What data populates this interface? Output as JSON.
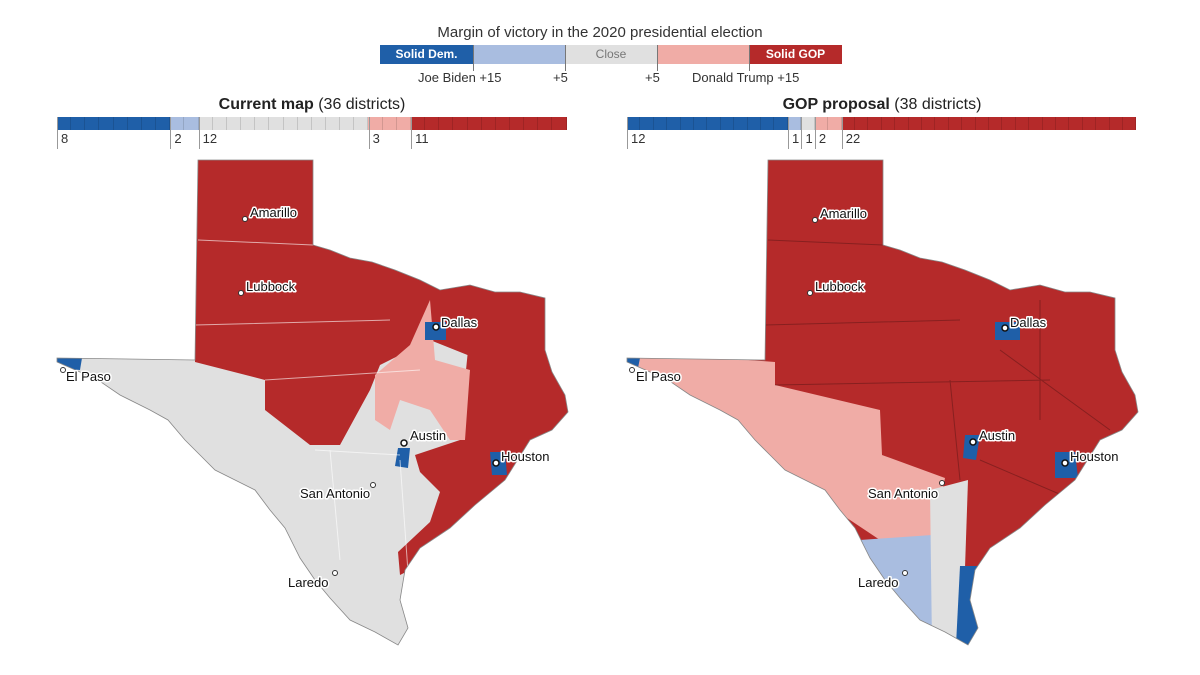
{
  "legend": {
    "title": "Margin of victory in the 2020 presidential election",
    "segments": [
      {
        "label": "Solid Dem.",
        "color": "#1f5fa8"
      },
      {
        "label": "",
        "color": "#a9bde0"
      },
      {
        "label": "Close",
        "color": "#e0e0e0"
      },
      {
        "label": "",
        "color": "#f0aca6"
      },
      {
        "label": "Solid GOP",
        "color": "#b52a2a"
      }
    ],
    "tick_labels": [
      "Joe Biden +15",
      "+5",
      "+5",
      "Donald Trump +15"
    ]
  },
  "maps": [
    {
      "title_bold": "Current map",
      "title_rest": " (36 districts)",
      "counts": [
        8,
        2,
        12,
        3,
        11
      ],
      "count_labels": [
        "8",
        "2",
        "12",
        "3",
        "11"
      ],
      "cities": [
        "Amarillo",
        "Lubbock",
        "Dallas",
        "El Paso",
        "Austin",
        "Houston",
        "San Antonio",
        "Laredo"
      ]
    },
    {
      "title_bold": "GOP proposal",
      "title_rest": " (38 districts)",
      "counts": [
        12,
        1,
        1,
        2,
        22
      ],
      "count_labels": [
        "12",
        "1",
        "1",
        "2",
        "22"
      ],
      "cities": [
        "Amarillo",
        "Lubbock",
        "Dallas",
        "El Paso",
        "Austin",
        "Houston",
        "San Antonio",
        "Laredo"
      ]
    }
  ]
}
